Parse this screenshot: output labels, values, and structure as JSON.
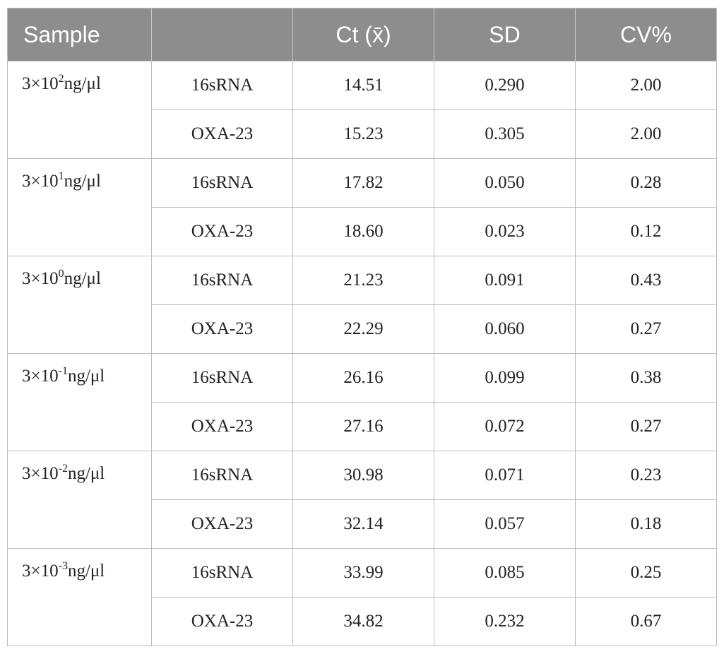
{
  "header": {
    "col1": "Sample",
    "col2": "",
    "col3": "Ct (x̄)",
    "col4": "SD",
    "col5": "CV%"
  },
  "groups": [
    {
      "base": "3×10",
      "exp": "2",
      "unit": "ng/μl",
      "rows": [
        {
          "target": "16sRNA",
          "ct": "14.51",
          "sd": "0.290",
          "cv": "2.00"
        },
        {
          "target": "OXA-23",
          "ct": "15.23",
          "sd": "0.305",
          "cv": "2.00"
        }
      ]
    },
    {
      "base": "3×10",
      "exp": "1",
      "unit": "ng/μl",
      "rows": [
        {
          "target": "16sRNA",
          "ct": "17.82",
          "sd": "0.050",
          "cv": "0.28"
        },
        {
          "target": "OXA-23",
          "ct": "18.60",
          "sd": "0.023",
          "cv": "0.12"
        }
      ]
    },
    {
      "base": "3×10",
      "exp": "0",
      "unit": "ng/μl",
      "rows": [
        {
          "target": "16sRNA",
          "ct": "21.23",
          "sd": "0.091",
          "cv": "0.43"
        },
        {
          "target": "OXA-23",
          "ct": "22.29",
          "sd": "0.060",
          "cv": "0.27"
        }
      ]
    },
    {
      "base": "3×10",
      "exp": "-1",
      "unit": "ng/μl",
      "rows": [
        {
          "target": "16sRNA",
          "ct": "26.16",
          "sd": "0.099",
          "cv": "0.38"
        },
        {
          "target": "OXA-23",
          "ct": "27.16",
          "sd": "0.072",
          "cv": "0.27"
        }
      ]
    },
    {
      "base": "3×10",
      "exp": "-2",
      "unit": "ng/μl",
      "rows": [
        {
          "target": "16sRNA",
          "ct": "30.98",
          "sd": "0.071",
          "cv": "0.23"
        },
        {
          "target": "OXA-23",
          "ct": "32.14",
          "sd": "0.057",
          "cv": "0.18"
        }
      ]
    },
    {
      "base": "3×10",
      "exp": "-3",
      "unit": "ng/μl",
      "rows": [
        {
          "target": "16sRNA",
          "ct": "33.99",
          "sd": "0.085",
          "cv": "0.25"
        },
        {
          "target": "OXA-23",
          "ct": "34.82",
          "sd": "0.232",
          "cv": "0.67"
        }
      ]
    }
  ]
}
